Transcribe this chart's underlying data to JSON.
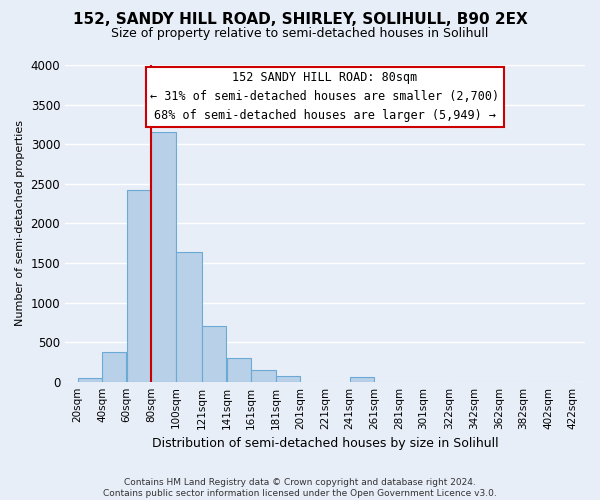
{
  "title": "152, SANDY HILL ROAD, SHIRLEY, SOLIHULL, B90 2EX",
  "subtitle": "Size of property relative to semi-detached houses in Solihull",
  "xlabel": "Distribution of semi-detached houses by size in Solihull",
  "ylabel": "Number of semi-detached properties",
  "footer_line1": "Contains HM Land Registry data © Crown copyright and database right 2024.",
  "footer_line2": "Contains public sector information licensed under the Open Government Licence v3.0.",
  "annotation_title": "152 SANDY HILL ROAD: 80sqm",
  "annotation_line2": "← 31% of semi-detached houses are smaller (2,700)",
  "annotation_line3": "68% of semi-detached houses are larger (5,949) →",
  "property_line_x": 80,
  "bar_edges": [
    20,
    40,
    60,
    80,
    100,
    121,
    141,
    161,
    181,
    201,
    221,
    241,
    261,
    281,
    301,
    322,
    342,
    362,
    382,
    402,
    422
  ],
  "bar_heights": [
    50,
    370,
    2420,
    3150,
    1640,
    700,
    300,
    145,
    70,
    0,
    0,
    55,
    0,
    0,
    0,
    0,
    0,
    0,
    0,
    0
  ],
  "bar_color": "#b8d0e8",
  "bar_edge_color": "#6aaad4",
  "property_line_color": "#cc0000",
  "annotation_box_color": "#ffffff",
  "annotation_box_edge": "#cc0000",
  "plot_bg_color": "#e8eef8",
  "fig_bg_color": "#e8eef8",
  "grid_color": "#ffffff",
  "ylim": [
    0,
    4000
  ],
  "yticks": [
    0,
    500,
    1000,
    1500,
    2000,
    2500,
    3000,
    3500,
    4000
  ],
  "title_fontsize": 11,
  "subtitle_fontsize": 9
}
